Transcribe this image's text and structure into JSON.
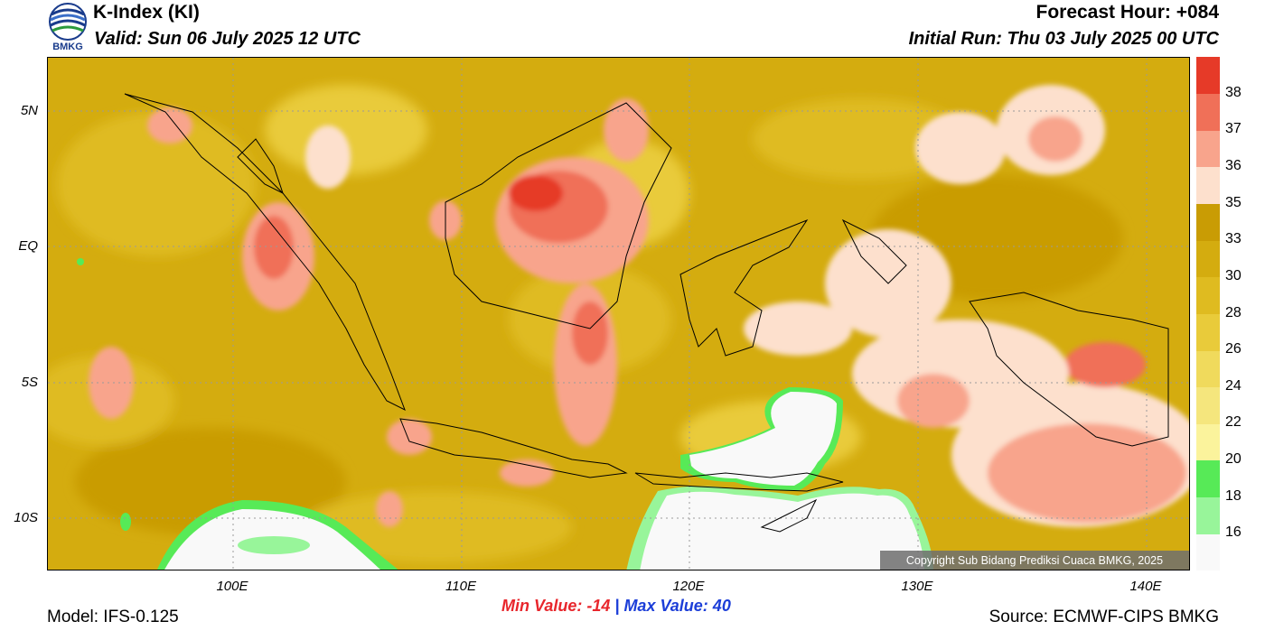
{
  "header": {
    "title": "K-Index (KI)",
    "valid": "Valid: Sun 06 July 2025 12 UTC",
    "forecast_hour": "Forecast Hour: +084",
    "initial_run": "Initial Run: Thu 03 July 2025 00 UTC"
  },
  "logo": {
    "text": "BMKG"
  },
  "map": {
    "lat_ticks": [
      "5N",
      "EQ",
      "5S",
      "10S"
    ],
    "lon_ticks": [
      "100E",
      "110E",
      "120E",
      "130E",
      "140E"
    ],
    "copyright": "Copyright Sub Bidang Prediksi Cuaca BMKG, 2025"
  },
  "colorbar": {
    "labels": [
      "38",
      "37",
      "36",
      "35",
      "33",
      "30",
      "28",
      "26",
      "24",
      "22",
      "20",
      "18",
      "16"
    ],
    "colors": [
      "#f9f9f9",
      "#98f59a",
      "#57ea57",
      "#fbf39c",
      "#f5e67d",
      "#f0da5c",
      "#e9cb3a",
      "#dfbb20",
      "#d4ac0f",
      "#c99c04",
      "#fde0cd",
      "#f8a48c",
      "#f07058",
      "#e63a28"
    ]
  },
  "stats": {
    "min": "Min Value: -14",
    "separator": "|",
    "max": "Max Value:  40"
  },
  "footer": {
    "model": "Model: IFS-0.125",
    "source": "Source: ECMWF-CIPS BMKG"
  }
}
